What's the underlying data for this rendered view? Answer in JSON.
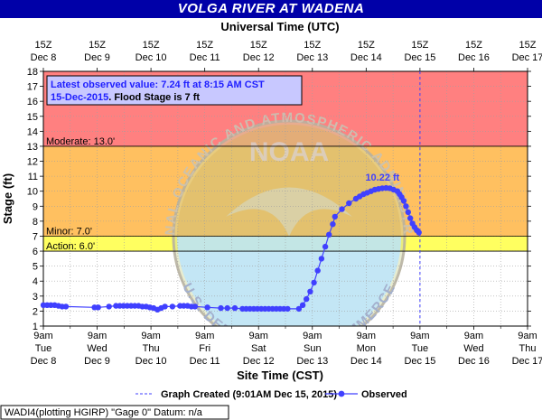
{
  "title": "VOLGA RIVER AT WADENA",
  "top_axis_title": "Universal Time (UTC)",
  "bottom_axis_title": "Site Time (CST)",
  "y_axis_title": "Stage (ft)",
  "info_box": {
    "line1": "Latest observed value: 7.24 ft at 8:15 AM CST",
    "line2_date": "15-Dec-2015",
    "line2_rest": ". Flood Stage is 7 ft"
  },
  "peak_label": "10.22 ft",
  "legend": {
    "graph_created": "Graph Created (9:01AM Dec 15, 2015)",
    "observed": "Observed"
  },
  "footer": "WADI4(plotting HGIRP) \"Gage 0\" Datum: n/a",
  "watermark": {
    "logo_text": "NOAA",
    "arc_top": "NATIONAL OCEANIC AND ATMOSPHERIC ADMINISTRATION",
    "arc_bottom": "U.S. DEPARTMENT OF COMMERCE"
  },
  "colors": {
    "title_bg": "#0000a8",
    "major": "#ff8080",
    "moderate": "#ffc060",
    "minor": "#ffff60",
    "series": "#4040ff",
    "axis_text": "#000000"
  },
  "chart_data": {
    "type": "line",
    "ylim": [
      1,
      18
    ],
    "yticks": [
      1,
      2,
      3,
      4,
      5,
      6,
      7,
      8,
      9,
      10,
      11,
      12,
      13,
      14,
      15,
      16,
      17,
      18
    ],
    "xlim_days": [
      0,
      9
    ],
    "bottom_ticks": [
      {
        "l1": "9am",
        "l2": "Tue",
        "l3": "Dec 8"
      },
      {
        "l1": "9am",
        "l2": "Wed",
        "l3": "Dec 9"
      },
      {
        "l1": "9am",
        "l2": "Thu",
        "l3": "Dec 10"
      },
      {
        "l1": "9am",
        "l2": "Fri",
        "l3": "Dec 11"
      },
      {
        "l1": "9am",
        "l2": "Sat",
        "l3": "Dec 12"
      },
      {
        "l1": "9am",
        "l2": "Sun",
        "l3": "Dec 13"
      },
      {
        "l1": "9am",
        "l2": "Mon",
        "l3": "Dec 14"
      },
      {
        "l1": "9am",
        "l2": "Tue",
        "l3": "Dec 15"
      },
      {
        "l1": "9am",
        "l2": "Wed",
        "l3": "Dec 16"
      },
      {
        "l1": "9am",
        "l2": "Thu",
        "l3": "Dec 17"
      }
    ],
    "top_ticks": [
      {
        "l1": "15Z",
        "l2": "Dec 8"
      },
      {
        "l1": "15Z",
        "l2": "Dec 9"
      },
      {
        "l1": "15Z",
        "l2": "Dec 10"
      },
      {
        "l1": "15Z",
        "l2": "Dec 11"
      },
      {
        "l1": "15Z",
        "l2": "Dec 12"
      },
      {
        "l1": "15Z",
        "l2": "Dec 13"
      },
      {
        "l1": "15Z",
        "l2": "Dec 14"
      },
      {
        "l1": "15Z",
        "l2": "Dec 15"
      },
      {
        "l1": "15Z",
        "l2": "Dec 16"
      },
      {
        "l1": "15Z",
        "l2": "Dec 17"
      }
    ],
    "flood_categories": [
      {
        "name": "Action",
        "label": "Action: 6.0'",
        "from": 6,
        "to": 7,
        "color": "#ffff60"
      },
      {
        "name": "Minor",
        "label": "Minor: 7.0'",
        "from": 7,
        "to": 13,
        "color": "#ffc060"
      },
      {
        "name": "Moderate",
        "label": "Moderate: 13.0'",
        "from": 13,
        "to": 18,
        "color": "#ff8080"
      }
    ],
    "graph_created_x": 7.0,
    "series": [
      {
        "name": "Observed",
        "x": [
          0.0,
          0.07,
          0.14,
          0.21,
          0.28,
          0.35,
          0.42,
          0.95,
          1.02,
          1.22,
          1.35,
          1.42,
          1.49,
          1.56,
          1.63,
          1.7,
          1.77,
          1.84,
          1.91,
          1.98,
          2.05,
          2.12,
          2.19,
          2.26,
          2.4,
          2.54,
          2.61,
          2.68,
          2.75,
          2.82,
          3.05,
          3.3,
          3.42,
          3.56,
          3.7,
          3.77,
          3.84,
          3.91,
          3.98,
          4.05,
          4.12,
          4.19,
          4.26,
          4.33,
          4.4,
          4.47,
          4.54,
          4.75,
          4.82,
          4.89,
          4.96,
          5.03,
          5.1,
          5.17,
          5.24,
          5.31,
          5.38,
          5.42,
          5.55,
          5.68,
          5.81,
          5.88,
          5.95,
          6.02,
          6.09,
          6.16,
          6.23,
          6.3,
          6.37,
          6.44,
          6.51,
          6.58,
          6.62,
          6.66,
          6.7,
          6.74,
          6.78,
          6.82,
          6.86,
          6.9,
          6.94,
          6.98
        ],
        "y": [
          2.4,
          2.4,
          2.4,
          2.4,
          2.35,
          2.3,
          2.3,
          2.25,
          2.25,
          2.3,
          2.35,
          2.35,
          2.35,
          2.35,
          2.35,
          2.35,
          2.35,
          2.3,
          2.3,
          2.25,
          2.2,
          2.1,
          2.2,
          2.3,
          2.3,
          2.35,
          2.35,
          2.35,
          2.3,
          2.3,
          2.25,
          2.2,
          2.2,
          2.2,
          2.15,
          2.15,
          2.15,
          2.15,
          2.15,
          2.15,
          2.15,
          2.15,
          2.15,
          2.15,
          2.15,
          2.15,
          2.15,
          2.15,
          2.4,
          2.8,
          3.3,
          3.9,
          4.7,
          5.5,
          6.3,
          7.1,
          7.8,
          8.3,
          8.8,
          9.2,
          9.5,
          9.65,
          9.8,
          9.9,
          10.0,
          10.1,
          10.15,
          10.2,
          10.22,
          10.2,
          10.1,
          10.0,
          9.8,
          9.6,
          9.35,
          9.0,
          8.6,
          8.2,
          7.85,
          7.6,
          7.4,
          7.24
        ]
      }
    ]
  }
}
